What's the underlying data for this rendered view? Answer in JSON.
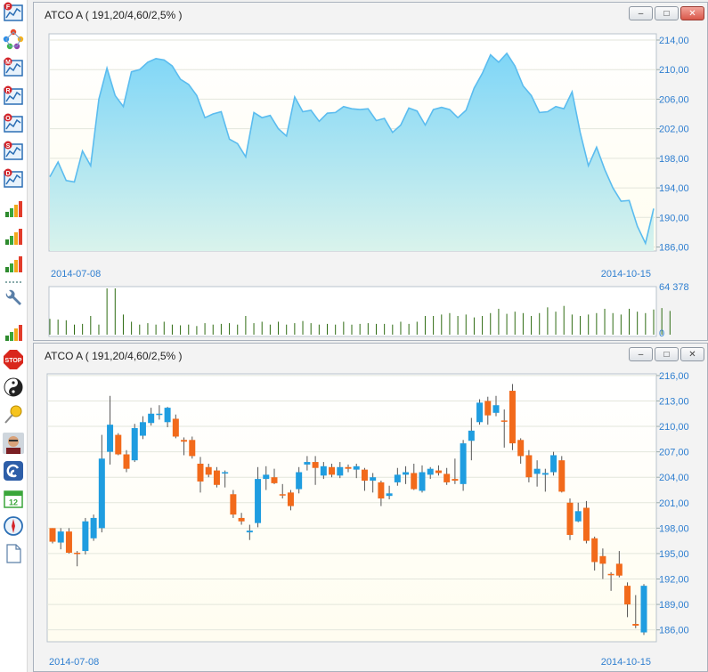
{
  "toolbar": {
    "items": [
      {
        "name": "chart-f-icon",
        "badge": "F",
        "kind": "chart"
      },
      {
        "name": "network-icon",
        "badge": "",
        "kind": "network"
      },
      {
        "name": "chart-m-icon",
        "badge": "M",
        "kind": "chart"
      },
      {
        "name": "chart-r-icon",
        "badge": "R",
        "kind": "chart"
      },
      {
        "name": "chart-o-icon",
        "badge": "O",
        "kind": "chart"
      },
      {
        "name": "chart-s-icon",
        "badge": "S",
        "kind": "chart"
      },
      {
        "name": "chart-d-icon",
        "badge": "D",
        "kind": "chart"
      },
      {
        "name": "bar-chart-icon",
        "badge": "",
        "kind": "bars"
      },
      {
        "name": "bar-chart-icon",
        "badge": "",
        "kind": "bars"
      },
      {
        "name": "bar-chart-icon",
        "badge": "",
        "kind": "bars"
      },
      {
        "name": "separator",
        "badge": "",
        "kind": "sep"
      },
      {
        "name": "wrench-icon",
        "badge": "",
        "kind": "wrench"
      },
      {
        "name": "bar-chart-icon",
        "badge": "",
        "kind": "bars"
      },
      {
        "name": "stop-icon",
        "badge": "STOP",
        "kind": "stop"
      },
      {
        "name": "yin-yang-icon",
        "badge": "",
        "kind": "yinyang"
      },
      {
        "name": "pushpin-icon",
        "badge": "",
        "kind": "pin"
      },
      {
        "name": "user-avatar-icon",
        "badge": "",
        "kind": "avatar"
      },
      {
        "name": "swirl-icon",
        "badge": "",
        "kind": "swirl"
      },
      {
        "name": "calendar-icon",
        "badge": "12",
        "kind": "calendar"
      },
      {
        "name": "compass-icon",
        "badge": "",
        "kind": "compass"
      },
      {
        "name": "document-icon",
        "badge": "",
        "kind": "doc"
      }
    ]
  },
  "windows": {
    "top": {
      "title": "ATCO A ( 191,20/4,60/2,5% )"
    },
    "bottom": {
      "title": "ATCO A ( 191,20/4,60/2,5% )"
    }
  },
  "colors": {
    "area_line": "#5bbcef",
    "area_fill_top": "#7fd6f7",
    "up": "#1f9de0",
    "down": "#f26a1b",
    "volume": "#2e6b12",
    "axis_text": "#2f7fd0",
    "plot_bg": "#fffdf0"
  },
  "chart_data": [
    {
      "type": "area",
      "x_start_label": "2014-07-08",
      "x_end_label": "2014-10-15",
      "y_ticks": [
        "214,00",
        "210,00",
        "206,00",
        "202,00",
        "198,00",
        "194,00",
        "190,00",
        "186,00"
      ],
      "ylim": [
        186,
        214
      ],
      "values": [
        195.5,
        197.5,
        195,
        194.8,
        199,
        197,
        206,
        210.2,
        206.5,
        205,
        209.7,
        210,
        211,
        211.5,
        211.3,
        210.5,
        208.7,
        208,
        206.5,
        203.5,
        204,
        204.3,
        200.6,
        200,
        198.2,
        204.2,
        203.5,
        203.8,
        202,
        201,
        206.3,
        204.3,
        204.5,
        203,
        204.1,
        204.2,
        205,
        204.7,
        204.6,
        204.7,
        203.1,
        203.4,
        201.5,
        202.5,
        204.8,
        204.4,
        202.5,
        204.6,
        204.9,
        204.6,
        203.5,
        204.5,
        207.5,
        209.5,
        212,
        211,
        212.2,
        210.5,
        207.8,
        206.5,
        204.2,
        204.3,
        205,
        204.7,
        207,
        201.5,
        197,
        199.5,
        196.5,
        194,
        192.2,
        192.3,
        188.8,
        186.5,
        191.2
      ]
    },
    {
      "type": "bar",
      "name": "volume",
      "y_ticks": [
        "64 378",
        "0"
      ],
      "ylim": [
        0,
        64378
      ],
      "values": [
        22000,
        21000,
        20000,
        14000,
        15000,
        26000,
        14000,
        64378,
        64378,
        28000,
        18000,
        14000,
        16000,
        14000,
        18000,
        14000,
        13000,
        14000,
        12000,
        16000,
        14000,
        15000,
        16000,
        14000,
        26000,
        16000,
        18000,
        14000,
        18000,
        14000,
        16000,
        19000,
        16000,
        14000,
        15000,
        14000,
        18000,
        14000,
        15000,
        16000,
        15000,
        15000,
        14000,
        18000,
        15000,
        18000,
        26000,
        26000,
        28000,
        30000,
        26000,
        28000,
        24000,
        26000,
        30000,
        36000,
        29000,
        32000,
        30000,
        26000,
        30000,
        38000,
        32000,
        40000,
        28000,
        26000,
        28000,
        30000,
        36000,
        30000,
        28000,
        36000,
        32000,
        30000,
        35000,
        37000,
        33000
      ]
    },
    {
      "type": "candlestick",
      "x_start_label": "2014-07-08",
      "x_end_label": "2014-10-15",
      "y_ticks": [
        "216,00",
        "213,00",
        "210,00",
        "207,00",
        "204,00",
        "201,00",
        "198,00",
        "195,00",
        "192,00",
        "189,00",
        "186,00"
      ],
      "ylim": [
        184.6,
        216.2
      ],
      "candles": [
        {
          "o": 198,
          "h": 198,
          "l": 196.2,
          "c": 196.4
        },
        {
          "o": 196.3,
          "h": 198,
          "l": 195.5,
          "c": 197.6
        },
        {
          "o": 197.6,
          "h": 198,
          "l": 195,
          "c": 195.1
        },
        {
          "o": 195.1,
          "h": 195.3,
          "l": 193.5,
          "c": 195
        },
        {
          "o": 195.3,
          "h": 199.2,
          "l": 194.9,
          "c": 198.8
        },
        {
          "o": 196.8,
          "h": 199.6,
          "l": 196.5,
          "c": 199.2
        },
        {
          "o": 198,
          "h": 209,
          "l": 197.5,
          "c": 206.2
        },
        {
          "o": 207,
          "h": 213.6,
          "l": 205.5,
          "c": 210.2
        },
        {
          "o": 209,
          "h": 209.2,
          "l": 206.6,
          "c": 206.7
        },
        {
          "o": 206.7,
          "h": 207.2,
          "l": 204.6,
          "c": 205
        },
        {
          "o": 206,
          "h": 210.3,
          "l": 205.8,
          "c": 209.8
        },
        {
          "o": 208.9,
          "h": 211.2,
          "l": 208.5,
          "c": 210.5
        },
        {
          "o": 210.4,
          "h": 212.2,
          "l": 210.1,
          "c": 211.5
        },
        {
          "o": 211.4,
          "h": 212.5,
          "l": 210.8,
          "c": 211.5
        },
        {
          "o": 210.5,
          "h": 212.3,
          "l": 209.9,
          "c": 212.2
        },
        {
          "o": 210.9,
          "h": 211.4,
          "l": 208.6,
          "c": 208.8
        },
        {
          "o": 208.4,
          "h": 208.7,
          "l": 206.6,
          "c": 208.2
        },
        {
          "o": 208.4,
          "h": 208.8,
          "l": 206.2,
          "c": 206.5
        },
        {
          "o": 205.6,
          "h": 206.4,
          "l": 202.2,
          "c": 203.5
        },
        {
          "o": 205.2,
          "h": 205.6,
          "l": 204,
          "c": 204.3
        },
        {
          "o": 204.8,
          "h": 205.2,
          "l": 202.8,
          "c": 203.1
        },
        {
          "o": 204.6,
          "h": 204.8,
          "l": 202.8,
          "c": 204.6
        },
        {
          "o": 202,
          "h": 202.5,
          "l": 199.2,
          "c": 199.6
        },
        {
          "o": 199.2,
          "h": 199.8,
          "l": 198.4,
          "c": 198.8
        },
        {
          "o": 197.5,
          "h": 198.4,
          "l": 196.6,
          "c": 197.7
        },
        {
          "o": 198.6,
          "h": 205.2,
          "l": 198.1,
          "c": 203.8
        },
        {
          "o": 203.8,
          "h": 205.3,
          "l": 202.5,
          "c": 204.3
        },
        {
          "o": 204,
          "h": 205,
          "l": 203.2,
          "c": 203.3
        },
        {
          "o": 202,
          "h": 203.2,
          "l": 201.5,
          "c": 201.9
        },
        {
          "o": 202.2,
          "h": 202.5,
          "l": 200.1,
          "c": 200.6
        },
        {
          "o": 202.6,
          "h": 205.2,
          "l": 202.1,
          "c": 204.6
        },
        {
          "o": 205.5,
          "h": 206.5,
          "l": 204.8,
          "c": 205.8
        },
        {
          "o": 205.8,
          "h": 206.5,
          "l": 203.1,
          "c": 205.1
        },
        {
          "o": 204.2,
          "h": 205.8,
          "l": 203.8,
          "c": 205.3
        },
        {
          "o": 205.2,
          "h": 205.6,
          "l": 204,
          "c": 204.3
        },
        {
          "o": 204.2,
          "h": 205.8,
          "l": 203.9,
          "c": 205.2
        },
        {
          "o": 205.2,
          "h": 205.5,
          "l": 204.6,
          "c": 205
        },
        {
          "o": 204.9,
          "h": 205.6,
          "l": 203.9,
          "c": 205.3
        },
        {
          "o": 204.9,
          "h": 205.1,
          "l": 202.4,
          "c": 203.6
        },
        {
          "o": 203.6,
          "h": 204.5,
          "l": 202.2,
          "c": 204
        },
        {
          "o": 203.4,
          "h": 203.6,
          "l": 200.6,
          "c": 201.5
        },
        {
          "o": 201.8,
          "h": 203,
          "l": 201.4,
          "c": 202.1
        },
        {
          "o": 203.4,
          "h": 205.1,
          "l": 203,
          "c": 204.3
        },
        {
          "o": 204.3,
          "h": 205.3,
          "l": 203.2,
          "c": 204.6
        },
        {
          "o": 204.5,
          "h": 205.6,
          "l": 202.5,
          "c": 202.6
        },
        {
          "o": 202.4,
          "h": 205.4,
          "l": 202.2,
          "c": 204.6
        },
        {
          "o": 204.3,
          "h": 205.2,
          "l": 203.8,
          "c": 205
        },
        {
          "o": 204.8,
          "h": 205.4,
          "l": 204.2,
          "c": 204.5
        },
        {
          "o": 204.4,
          "h": 205.1,
          "l": 203.1,
          "c": 203.4
        },
        {
          "o": 203.8,
          "h": 206.2,
          "l": 203.2,
          "c": 203.6
        },
        {
          "o": 203.2,
          "h": 208.4,
          "l": 202.4,
          "c": 208
        },
        {
          "o": 208.3,
          "h": 211,
          "l": 206,
          "c": 209.5
        },
        {
          "o": 210.5,
          "h": 213.2,
          "l": 210.2,
          "c": 212.8
        },
        {
          "o": 213,
          "h": 213.5,
          "l": 210.2,
          "c": 211.3
        },
        {
          "o": 211.6,
          "h": 213.6,
          "l": 211.2,
          "c": 212.5
        },
        {
          "o": 210.7,
          "h": 212,
          "l": 207.5,
          "c": 210.6
        },
        {
          "o": 214.2,
          "h": 215,
          "l": 207.2,
          "c": 208
        },
        {
          "o": 208.4,
          "h": 208.6,
          "l": 205.6,
          "c": 206.5
        },
        {
          "o": 206.6,
          "h": 207.2,
          "l": 203.4,
          "c": 204
        },
        {
          "o": 204.4,
          "h": 206,
          "l": 202.9,
          "c": 205
        },
        {
          "o": 204.3,
          "h": 205,
          "l": 202.3,
          "c": 204.5
        },
        {
          "o": 204.6,
          "h": 207,
          "l": 204.2,
          "c": 206.6
        },
        {
          "o": 206,
          "h": 206.5,
          "l": 202.2,
          "c": 202.3
        },
        {
          "o": 201,
          "h": 201.5,
          "l": 196.6,
          "c": 197.2
        },
        {
          "o": 198.8,
          "h": 201,
          "l": 198.7,
          "c": 200
        },
        {
          "o": 200.4,
          "h": 201.2,
          "l": 196.2,
          "c": 196.5
        },
        {
          "o": 196.8,
          "h": 197,
          "l": 193,
          "c": 194
        },
        {
          "o": 194.7,
          "h": 195.6,
          "l": 192,
          "c": 193.8
        },
        {
          "o": 192.6,
          "h": 192.8,
          "l": 190.6,
          "c": 192.5
        },
        {
          "o": 193.8,
          "h": 195.3,
          "l": 192.2,
          "c": 192.4
        },
        {
          "o": 191.2,
          "h": 191.6,
          "l": 187.5,
          "c": 189
        },
        {
          "o": 186.7,
          "h": 190.1,
          "l": 186.2,
          "c": 186.5
        },
        {
          "o": 185.7,
          "h": 191.4,
          "l": 185.4,
          "c": 191.2
        }
      ]
    }
  ]
}
